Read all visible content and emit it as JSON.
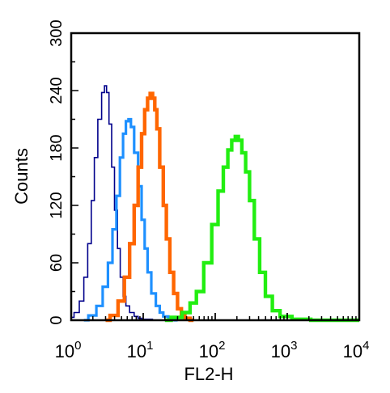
{
  "chart_data": {
    "type": "line",
    "title": "",
    "xlabel": "FL2-H",
    "ylabel": "Counts",
    "x_scale": "log",
    "xlim": [
      1,
      10000
    ],
    "ylim": [
      0,
      300
    ],
    "x_ticks": [
      {
        "value": 1,
        "base": "10",
        "exp": "0"
      },
      {
        "value": 10,
        "base": "10",
        "exp": "1"
      },
      {
        "value": 100,
        "base": "10",
        "exp": "2"
      },
      {
        "value": 1000,
        "base": "10",
        "exp": "3"
      },
      {
        "value": 10000,
        "base": "10",
        "exp": "4"
      }
    ],
    "y_ticks": [
      {
        "value": 0,
        "label": "0"
      },
      {
        "value": 60,
        "label": "60"
      },
      {
        "value": 120,
        "label": "120"
      },
      {
        "value": 180,
        "label": "180"
      },
      {
        "value": 240,
        "label": "240"
      },
      {
        "value": 300,
        "label": "300"
      }
    ],
    "grid": false,
    "series": [
      {
        "color": "#00008b",
        "stroke_weight": "thin",
        "x": [
          1.0,
          1.2,
          1.4,
          1.6,
          1.8,
          2.0,
          2.2,
          2.5,
          2.8,
          3.0,
          3.2,
          3.5,
          3.8,
          4.2,
          4.6,
          5.0,
          5.5,
          6.0,
          7.0,
          8.0,
          9.0,
          10.0,
          12.0,
          15.0,
          20.0
        ],
        "y": [
          3,
          8,
          20,
          45,
          80,
          125,
          170,
          210,
          238,
          245,
          238,
          205,
          160,
          115,
          75,
          45,
          25,
          15,
          8,
          4,
          2,
          1,
          1,
          0,
          0
        ]
      },
      {
        "color": "#1e90ff",
        "stroke_weight": "medium",
        "x": [
          1.5,
          2.0,
          2.5,
          3.0,
          3.5,
          4.0,
          4.5,
          5.0,
          5.5,
          6.0,
          6.5,
          7.0,
          8.0,
          9.0,
          10.0,
          11.0,
          12.0,
          14.0,
          16.0,
          18.0,
          20.0,
          25.0,
          30.0
        ],
        "y": [
          0,
          5,
          15,
          35,
          60,
          95,
          130,
          170,
          195,
          208,
          210,
          202,
          175,
          140,
          105,
          75,
          50,
          28,
          15,
          8,
          4,
          1,
          0
        ]
      },
      {
        "color": "#ff6600",
        "stroke_weight": "thick",
        "x": [
          3.0,
          4.0,
          5.0,
          6.0,
          7.0,
          8.0,
          9.0,
          10.0,
          11.0,
          12.0,
          13.0,
          14.0,
          15.0,
          16.0,
          18.0,
          20.0,
          22.0,
          25.0,
          28.0,
          32.0,
          36.0,
          40.0,
          50.0
        ],
        "y": [
          0,
          5,
          20,
          45,
          80,
          120,
          160,
          195,
          220,
          232,
          237,
          232,
          220,
          200,
          160,
          120,
          85,
          50,
          28,
          12,
          5,
          2,
          0
        ]
      },
      {
        "color": "#22ee11",
        "stroke_weight": "thick",
        "x": [
          20,
          30,
          40,
          50,
          60,
          80,
          100,
          120,
          140,
          160,
          180,
          200,
          220,
          250,
          280,
          320,
          380,
          450,
          550,
          700,
          900,
          1500,
          3000,
          10000
        ],
        "y": [
          0,
          3,
          8,
          18,
          30,
          60,
          100,
          135,
          160,
          178,
          188,
          192,
          188,
          175,
          155,
          125,
          85,
          50,
          25,
          10,
          4,
          1,
          0,
          0
        ]
      }
    ]
  }
}
